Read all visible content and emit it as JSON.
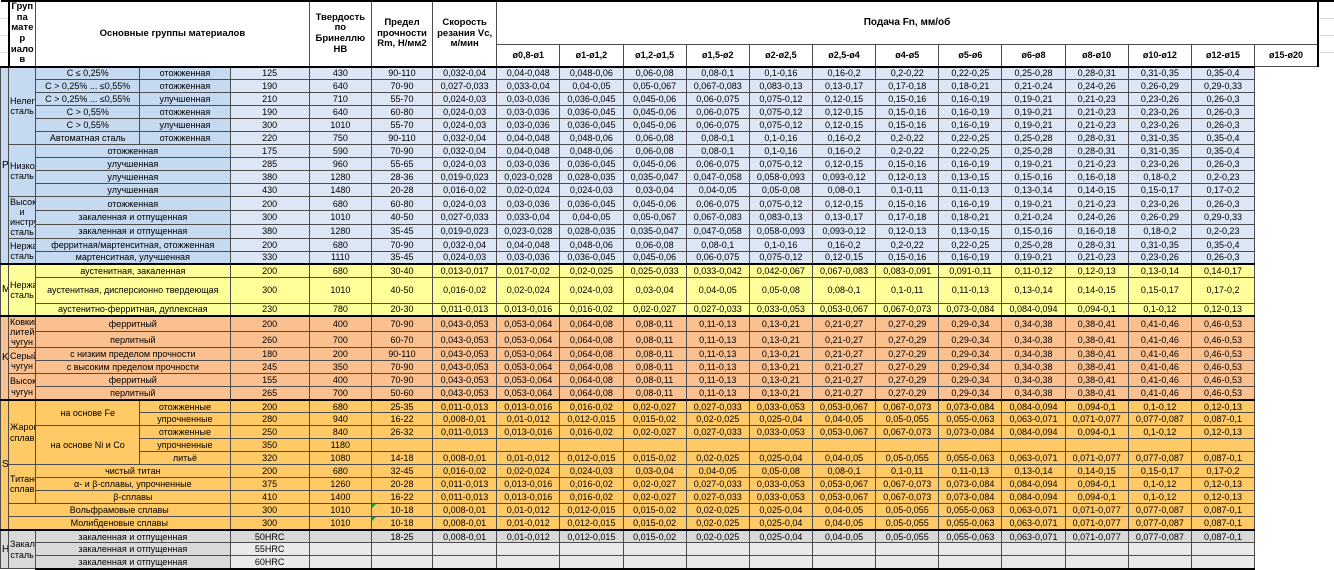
{
  "group_colors": {
    "P": "#c5d9f1",
    "M": "#ffff99",
    "K": "#fac090",
    "S": "#ffc966",
    "H": "#d9d9d9"
  },
  "table": {
    "header": {
      "group": "Группа матер иалов",
      "material_groups": "Основные группы материалов",
      "hardness": "Твердость по Бринеллю HB",
      "strength": "Предел прочности Rm, Н/мм2",
      "speed": "Скорость резания Vc, м/мин",
      "feed": "Подача Fn, мм/об",
      "diameters": [
        "ø0,8-ø1",
        "ø1-ø1,2",
        "ø1,2-ø1,5",
        "ø1,5-ø2",
        "ø2-ø2,5",
        "ø2,5-ø4",
        "ø4-ø5",
        "ø5-ø6",
        "ø6-ø8",
        "ø8-ø10",
        "ø10-ø12",
        "ø12-ø15",
        "ø15-ø20"
      ]
    },
    "feed_sets": {
      "A": [
        "0,032-0,04",
        "0,04-0,048",
        "0,048-0,06",
        "0,06-0,08",
        "0,08-0,1",
        "0,1-0,16",
        "0,16-0,2",
        "0,2-0,22",
        "0,22-0,25",
        "0,25-0,28",
        "0,28-0,31",
        "0,31-0,35",
        "0,35-0,4"
      ],
      "B": [
        "0,027-0,033",
        "0,033-0,04",
        "0,04-0,05",
        "0,05-0,067",
        "0,067-0,083",
        "0,083-0,13",
        "0,13-0,17",
        "0,17-0,18",
        "0,18-0,21",
        "0,21-0,24",
        "0,24-0,26",
        "0,26-0,29",
        "0,29-0,33"
      ],
      "C": [
        "0,024-0,03",
        "0,03-0,036",
        "0,036-0,045",
        "0,045-0,06",
        "0,06-0,075",
        "0,075-0,12",
        "0,12-0,15",
        "0,15-0,16",
        "0,16-0,19",
        "0,19-0,21",
        "0,21-0,23",
        "0,23-0,26",
        "0,26-0,3"
      ],
      "D": [
        "0,019-0,023",
        "0,023-0,028",
        "0,028-0,035",
        "0,035-0,047",
        "0,047-0,058",
        "0,058-0,093",
        "0,093-0,12",
        "0,12-0,13",
        "0,13-0,15",
        "0,15-0,16",
        "0,16-0,18",
        "0,18-0,2",
        "0,2-0,23"
      ],
      "E": [
        "0,016-0,02",
        "0,02-0,024",
        "0,024-0,03",
        "0,03-0,04",
        "0,04-0,05",
        "0,05-0,08",
        "0,08-0,1",
        "0,1-0,11",
        "0,11-0,13",
        "0,13-0,14",
        "0,14-0,15",
        "0,15-0,17",
        "0,17-0,2"
      ],
      "F": [
        "0,013-0,017",
        "0,017-0,02",
        "0,02-0,025",
        "0,025-0,033",
        "0,033-0,042",
        "0,042-0,067",
        "0,067-0,083",
        "0,083-0,091",
        "0,091-0,11",
        "0,11-0,12",
        "0,12-0,13",
        "0,13-0,14",
        "0,14-0,17"
      ],
      "G": [
        "0,011-0,013",
        "0,013-0,016",
        "0,016-0,02",
        "0,02-0,027",
        "0,027-0,033",
        "0,033-0,053",
        "0,053-0,067",
        "0,067-0,073",
        "0,073-0,084",
        "0,084-0,094",
        "0,094-0,1",
        "0,1-0,12",
        "0,12-0,13"
      ],
      "H": [
        "0,043-0,053",
        "0,053-0,064",
        "0,064-0,08",
        "0,08-0,11",
        "0,11-0,13",
        "0,13-0,21",
        "0,21-0,27",
        "0,27-0,29",
        "0,29-0,34",
        "0,34-0,38",
        "0,38-0,41",
        "0,41-0,46",
        "0,46-0,53"
      ],
      "I": [
        "0,008-0,01",
        "0,01-0,012",
        "0,012-0,015",
        "0,015-0,02",
        "0,02-0,025",
        "0,025-0,04",
        "0,04-0,05",
        "0,05-0,055",
        "0,055-0,063",
        "0,063-0,071",
        "0,071-0,077",
        "0,077-0,087",
        "0,087-0,1"
      ]
    },
    "rows": [
      {
        "cls": "p",
        "gs": true,
        "group": {
          "text": "P",
          "span": 15
        },
        "material": {
          "text": "Нелегированная сталь",
          "span": 6
        },
        "sub": {
          "text": "C ≤ 0,25%"
        },
        "state": "отожженная",
        "hb": "125",
        "rm": "430",
        "vc": "90-110",
        "feeds": "A"
      },
      {
        "cls": "p",
        "sub": {
          "text": "C > 0,25% ... ≤0,55%"
        },
        "state": "отожженная",
        "hb": "190",
        "rm": "640",
        "vc": "70-90",
        "feeds": "B"
      },
      {
        "cls": "p",
        "sub": {
          "text": "C > 0,25% ... ≤0,55%"
        },
        "state": "улучшенная",
        "hb": "210",
        "rm": "710",
        "vc": "55-70",
        "feeds": "C"
      },
      {
        "cls": "p",
        "sub": {
          "text": "C > 0,55%"
        },
        "state": "отожженная",
        "hb": "190",
        "rm": "640",
        "vc": "60-80",
        "feeds": "C"
      },
      {
        "cls": "p",
        "sub": {
          "text": "C > 0,55%"
        },
        "state": "улучшенная",
        "hb": "300",
        "rm": "1010",
        "vc": "55-70",
        "feeds": "C"
      },
      {
        "cls": "p",
        "sub": {
          "text": "Автоматная сталь"
        },
        "state": "отожженная",
        "hb": "220",
        "rm": "750",
        "vc": "90-110",
        "feeds": "A"
      },
      {
        "cls": "p",
        "material": {
          "text": "Низколегированная сталь",
          "span": 4
        },
        "sub": {
          "text": "отожженная",
          "colspan": 2
        },
        "hb": "175",
        "rm": "590",
        "vc": "70-90",
        "feeds": "A"
      },
      {
        "cls": "p",
        "sub": {
          "text": "улучшенная",
          "colspan": 2
        },
        "hb": "285",
        "rm": "960",
        "vc": "55-65",
        "feeds": "C"
      },
      {
        "cls": "p",
        "sub": {
          "text": "улучшенная",
          "colspan": 2
        },
        "hb": "380",
        "rm": "1280",
        "vc": "28-36",
        "feeds": "D"
      },
      {
        "cls": "p",
        "sub": {
          "text": "улучшенная",
          "colspan": 2
        },
        "hb": "430",
        "rm": "1480",
        "vc": "20-28",
        "feeds": "E"
      },
      {
        "cls": "p",
        "material": {
          "text": "Высоколегированная и инструментальная сталь",
          "span": 3
        },
        "sub": {
          "text": "отожженная",
          "colspan": 2
        },
        "hb": "200",
        "rm": "680",
        "vc": "60-80",
        "feeds": "C"
      },
      {
        "cls": "p",
        "sub": {
          "text": "закаленная и отпущенная",
          "colspan": 2
        },
        "hb": "300",
        "rm": "1010",
        "vc": "40-50",
        "feeds": "B"
      },
      {
        "cls": "p",
        "sub": {
          "text": "закаленная и отпущенная",
          "colspan": 2
        },
        "hb": "380",
        "rm": "1280",
        "vc": "35-45",
        "feeds": "D"
      },
      {
        "cls": "p",
        "material": {
          "text": "Нержавеющая сталь",
          "span": 2
        },
        "sub": {
          "text": "ферритная/мартенситная, отожженная",
          "colspan": 2
        },
        "hb": "200",
        "rm": "680",
        "vc": "70-90",
        "feeds": "A"
      },
      {
        "cls": "p",
        "sub": {
          "text": "мартенситная, улучшенная",
          "colspan": 2
        },
        "hb": "330",
        "rm": "1110",
        "vc": "35-45",
        "feeds": "C"
      },
      {
        "cls": "m",
        "gs": true,
        "group": {
          "text": "M",
          "span": 3
        },
        "material": {
          "text": "Нержавеющая сталь",
          "span": 3
        },
        "sub": {
          "text": "аустенитная, закаленная",
          "colspan": 2
        },
        "hb": "200",
        "rm": "680",
        "vc": "30-40",
        "feeds": "F"
      },
      {
        "cls": "m",
        "tall": true,
        "sub": {
          "text": "аустенитная, дисперсионно твердеющая",
          "colspan": 2
        },
        "hb": "300",
        "rm": "1010",
        "vc": "40-50",
        "feeds": "E"
      },
      {
        "cls": "m",
        "sub": {
          "text": "аустенитно-ферритная, дуплексная",
          "colspan": 2
        },
        "hb": "230",
        "rm": "780",
        "vc": "20-30",
        "feeds": "G"
      },
      {
        "cls": "k",
        "gs": true,
        "group": {
          "text": "K",
          "span": 6
        },
        "material": {
          "text": "Ковкий литейный чугун",
          "span": 2
        },
        "sub": {
          "text": "ферритный",
          "colspan": 2
        },
        "hb": "200",
        "rm": "400",
        "vc": "70-90",
        "feeds": "H"
      },
      {
        "cls": "k",
        "sub": {
          "text": "перлитный",
          "colspan": 2
        },
        "hb": "260",
        "rm": "700",
        "vc": "60-70",
        "feeds": "H"
      },
      {
        "cls": "k",
        "material": {
          "text": "Серый чугун",
          "span": 2
        },
        "sub": {
          "text": "с низким пределом прочности",
          "colspan": 2
        },
        "hb": "180",
        "rm": "200",
        "vc": "90-110",
        "feeds": "H"
      },
      {
        "cls": "k",
        "sub": {
          "text": "с высоким пределом прочности",
          "colspan": 2
        },
        "hb": "245",
        "rm": "350",
        "vc": "70-90",
        "feeds": "H"
      },
      {
        "cls": "k",
        "material": {
          "text": "Высокопрочный чугун",
          "span": 2
        },
        "sub": {
          "text": "ферритный",
          "colspan": 2
        },
        "hb": "155",
        "rm": "400",
        "vc": "70-90",
        "feeds": "H"
      },
      {
        "cls": "k",
        "sub": {
          "text": "перлитный",
          "colspan": 2
        },
        "hb": "265",
        "rm": "700",
        "vc": "50-60",
        "feeds": "H"
      },
      {
        "cls": "s",
        "gs": true,
        "group": {
          "text": "S",
          "span": 10
        },
        "material": {
          "text": "Жаропрочные сплавы",
          "span": 5
        },
        "sub": {
          "text": "на основе Fe",
          "rowspan": 2
        },
        "state": "отожженные",
        "hb": "200",
        "rm": "680",
        "vc": "25-35",
        "feeds": "G"
      },
      {
        "cls": "s",
        "state": "упрочненные",
        "hb": "280",
        "rm": "940",
        "vc": "16-22",
        "feeds": "I"
      },
      {
        "cls": "s",
        "sub": {
          "text": "на основе Ni и Co",
          "rowspan": 3
        },
        "state": "отожженные",
        "hb": "250",
        "rm": "840",
        "vc": "26-32",
        "feeds": "G"
      },
      {
        "cls": "s",
        "state": "упрочненные",
        "hb": "350",
        "rm": "1180",
        "vc": "",
        "feeds": []
      },
      {
        "cls": "s",
        "state": "литьё",
        "hb": "320",
        "rm": "1080",
        "vc": "14-18",
        "feeds": "I"
      },
      {
        "cls": "s",
        "material": {
          "text": "Титановые сплавы",
          "span": 3
        },
        "sub": {
          "text": "чистый титан",
          "colspan": 2
        },
        "hb": "200",
        "rm": "680",
        "vc": "32-45",
        "feeds": "E"
      },
      {
        "cls": "s",
        "sub": {
          "text": "α- и β-сплавы, упрочненные",
          "colspan": 2
        },
        "hb": "375",
        "rm": "1260",
        "vc": "20-28",
        "feeds": "G"
      },
      {
        "cls": "s",
        "sub": {
          "text": "β-сплавы",
          "colspan": 2
        },
        "hb": "410",
        "rm": "1400",
        "vc": "16-22",
        "feeds": "G"
      },
      {
        "cls": "s",
        "material": {
          "text": "Вольфрамовые сплавы",
          "colspan": 3
        },
        "hb": "300",
        "rm": "1010",
        "vc": "10-18",
        "flag": true,
        "feeds": "I"
      },
      {
        "cls": "s",
        "material": {
          "text": "Молибденовые сплавы",
          "colspan": 3
        },
        "hb": "300",
        "rm": "1010",
        "vc": "10-18",
        "flag": true,
        "feeds": "I"
      },
      {
        "cls": "h",
        "gs": true,
        "group": {
          "text": "H",
          "span": 3
        },
        "material": {
          "text": "Закаленная сталь",
          "span": 3
        },
        "sub": {
          "text": "закаленная и отпущенная",
          "colspan": 2
        },
        "hb": "50HRC",
        "rm": "",
        "vc": "18-25",
        "feeds": "I"
      },
      {
        "cls": "hl",
        "sub": {
          "text": "закаленная и отпущенная",
          "colspan": 2
        },
        "hb": "55HRC",
        "rm": "",
        "vc": "",
        "feeds": []
      },
      {
        "cls": "hl",
        "last": true,
        "sub": {
          "text": "закаленная и отпущенная",
          "colspan": 2
        },
        "hb": "60HRC",
        "rm": "",
        "vc": "",
        "feeds": []
      }
    ]
  }
}
